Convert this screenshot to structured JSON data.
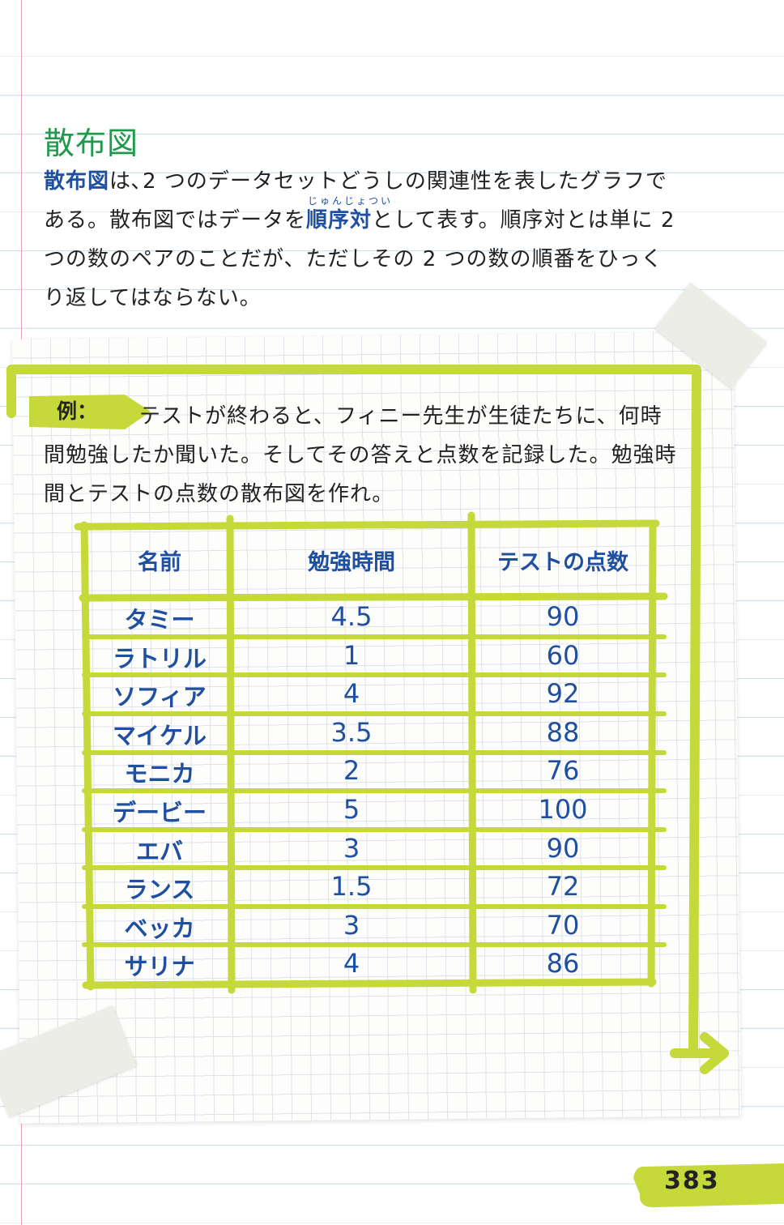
{
  "heading": "散布図",
  "intro": {
    "term": "散布図",
    "p1_rest": "は､2 つのデータセットどうしの関連性を表したグラフである。散布図ではデータを",
    "ordered_pair": "順序対",
    "ordered_pair_ruby": "じゅんじょつい",
    "p1_end": "として表す。順序対とは単に 2 つの数のペアのことだが、ただしその 2 つの数の順番をひっくり返してはならない。"
  },
  "example": {
    "tag": "例：",
    "text": "テストが終わると、フィニー先生が生徒たちに、何時間勉強したか聞いた。そしてその答えと点数を記録した。勉強時間とテストの点数の散布図を作れ。"
  },
  "table": {
    "headers": [
      "名前",
      "勉強時間",
      "テストの点数"
    ],
    "rows": [
      [
        "タミー",
        "4.5",
        "90"
      ],
      [
        "ラトリル",
        "1",
        "60"
      ],
      [
        "ソフィア",
        "4",
        "92"
      ],
      [
        "マイケル",
        "3.5",
        "88"
      ],
      [
        "モニカ",
        "2",
        "76"
      ],
      [
        "デービー",
        "5",
        "100"
      ],
      [
        "エバ",
        "3",
        "90"
      ],
      [
        "ランス",
        "1.5",
        "72"
      ],
      [
        "ベッカ",
        "3",
        "70"
      ],
      [
        "サリナ",
        "4",
        "86"
      ]
    ]
  },
  "page_number": "383",
  "colors": {
    "accent_lime": "#c6d93a",
    "heading_green": "#1f9a4c",
    "text_blue": "#1f4fa0"
  }
}
